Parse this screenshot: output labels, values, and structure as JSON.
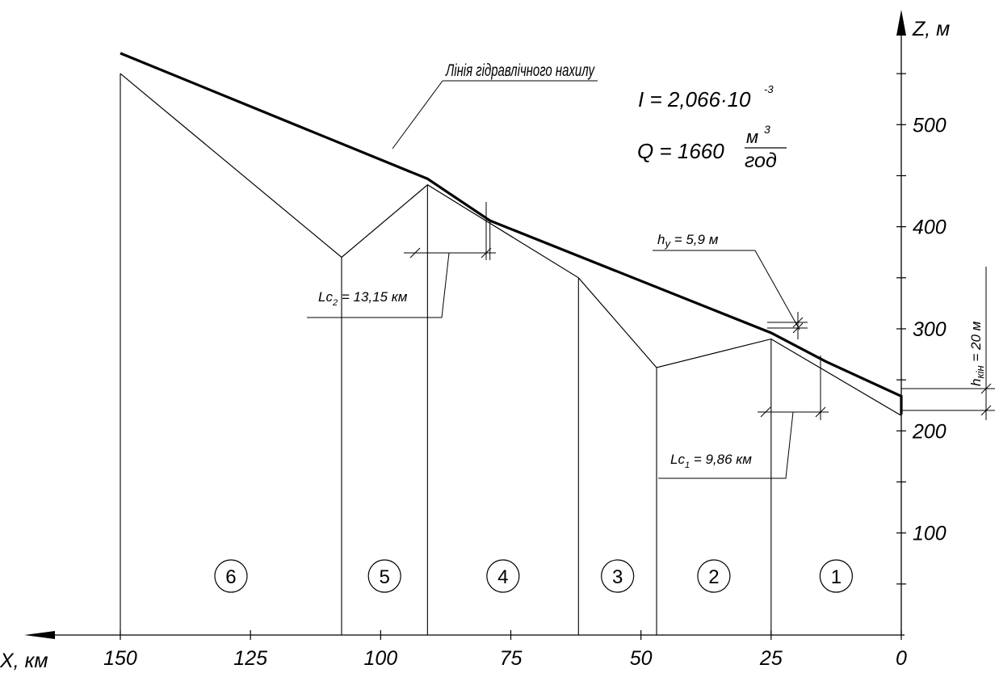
{
  "axes": {
    "z_label": "Z, м",
    "x_label": "X, км",
    "z_ticks": [
      "100",
      "200",
      "300",
      "400",
      "500"
    ],
    "x_ticks": [
      "150",
      "125",
      "100",
      "75",
      "50",
      "25",
      "0"
    ]
  },
  "annotations": {
    "hydraulic_line": "Лінія гідравлічного нахилу",
    "slope_eq": "I = 2,066·10",
    "slope_exp": "-3",
    "flow_q": "Q = 1660",
    "flow_num": "м",
    "flow_num_exp": "3",
    "flow_den": "год",
    "hy_h": "h",
    "hy_sub": "y",
    "hy_val": " = 5,9 м",
    "hkin_h": "h",
    "hkin_sub": "кін",
    "hkin_val": " = 20 м",
    "lc1_L": "L",
    "lc1_c": "c",
    "lc1_i": "1",
    "lc1_val": " = 9,86 км",
    "lc2_L": "L",
    "lc2_c": "c",
    "lc2_i": "2",
    "lc2_val": " = 13,15 км"
  },
  "sections": [
    "1",
    "2",
    "3",
    "4",
    "5",
    "6"
  ],
  "chart_data": {
    "type": "line",
    "xlabel": "X, км",
    "ylabel": "Z, м",
    "x_reversed": true,
    "series": [
      {
        "name": "Лінія гідравлічного нахилу",
        "x": [
          0,
          0,
          14.5,
          25,
          79,
          91,
          150
        ],
        "y": [
          216,
          234,
          268,
          296,
          406,
          447,
          570
        ]
      },
      {
        "x": [
          0,
          25,
          47,
          62,
          91,
          107.5,
          150
        ],
        "y": [
          215,
          290,
          262,
          350,
          441,
          370,
          550
        ]
      }
    ],
    "section_boundaries_x": [
      25,
      47,
      62,
      91,
      107.5,
      150
    ]
  }
}
